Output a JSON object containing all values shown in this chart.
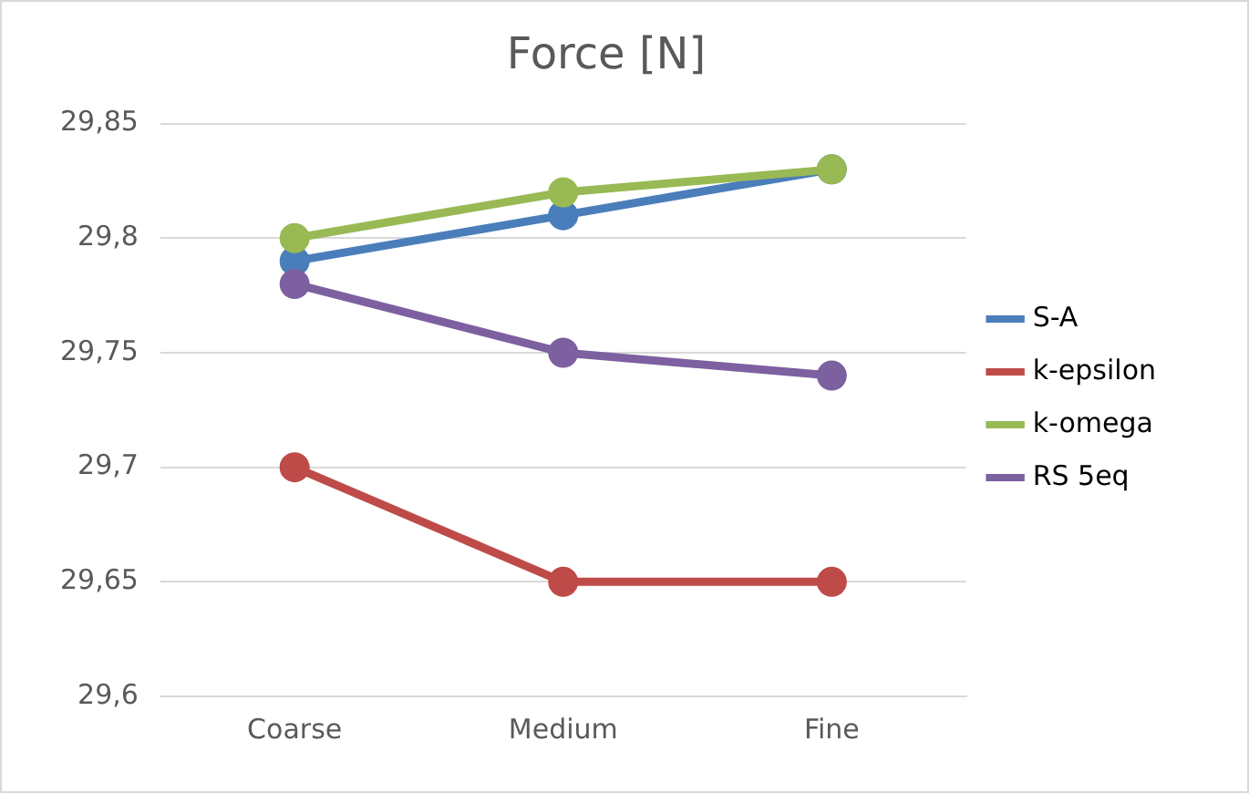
{
  "chart_data": {
    "type": "line",
    "title": "Force [N]",
    "categories": [
      "Coarse",
      "Medium",
      "Fine"
    ],
    "series": [
      {
        "name": "S-A",
        "color": "#4a7ebb",
        "values": [
          29.79,
          29.81,
          29.83
        ]
      },
      {
        "name": "k-epsilon",
        "color": "#be4b48",
        "values": [
          29.7,
          29.65,
          29.65
        ]
      },
      {
        "name": "k-omega",
        "color": "#98b954",
        "values": [
          29.8,
          29.82,
          29.83
        ]
      },
      {
        "name": "RS 5eq",
        "color": "#7d60a0",
        "values": [
          29.78,
          29.75,
          29.74
        ]
      }
    ],
    "ylim": [
      29.6,
      29.85
    ],
    "yticks": [
      {
        "value": 29.6,
        "label": "29,6"
      },
      {
        "value": 29.65,
        "label": "29,65"
      },
      {
        "value": 29.7,
        "label": "29,7"
      },
      {
        "value": 29.75,
        "label": "29,75"
      },
      {
        "value": 29.8,
        "label": "29,8"
      },
      {
        "value": 29.85,
        "label": "29,85"
      }
    ],
    "grid": "y",
    "legend": "right",
    "marker": "circle",
    "line_style": "solid"
  }
}
